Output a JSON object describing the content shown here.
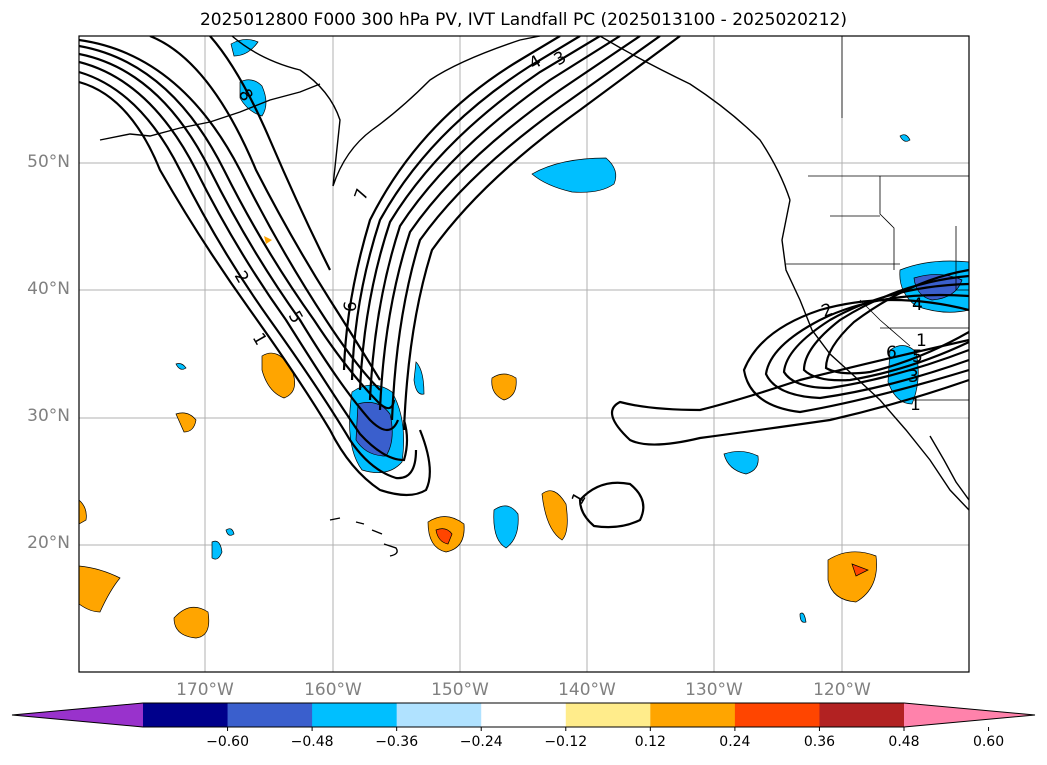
{
  "title": "2025012800 F000 300 hPa PV, IVT Landfall PC (2025013100 - 2025020212)",
  "lat_labels": [
    "50°N",
    "40°N",
    "30°N",
    "20°N"
  ],
  "lon_labels": [
    "170°W",
    "160°W",
    "150°W",
    "140°W",
    "130°W",
    "120°W"
  ],
  "contour_labels": [
    "8",
    "7",
    "6",
    "5",
    "4",
    "3",
    "2",
    "1",
    "2",
    "1",
    "1",
    "6",
    "5",
    "4",
    "3",
    "1"
  ],
  "colorbar": {
    "ticks": [
      "−0.60",
      "−0.48",
      "−0.36",
      "−0.24",
      "−0.12",
      "0.12",
      "0.24",
      "0.36",
      "0.48",
      "0.60"
    ],
    "colors": [
      "#9932cc",
      "#00008b",
      "#3a5fcd",
      "#00bfff",
      "#b0e2ff",
      "#ffffff",
      "#ffec8b",
      "#ffa500",
      "#ff4500",
      "#b22222",
      "#ff82ab"
    ]
  },
  "colors": {
    "anomaly_orange": "#ffa500",
    "anomaly_yellow": "#ffec8b",
    "anomaly_red": "#ff4500",
    "anomaly_blue": "#3a5fcd",
    "anomaly_cyan": "#00bfff",
    "anomaly_lightblue": "#b0e2ff",
    "contour": "#000000",
    "grid": "#b0b0b0",
    "axis_label": "#808080"
  }
}
